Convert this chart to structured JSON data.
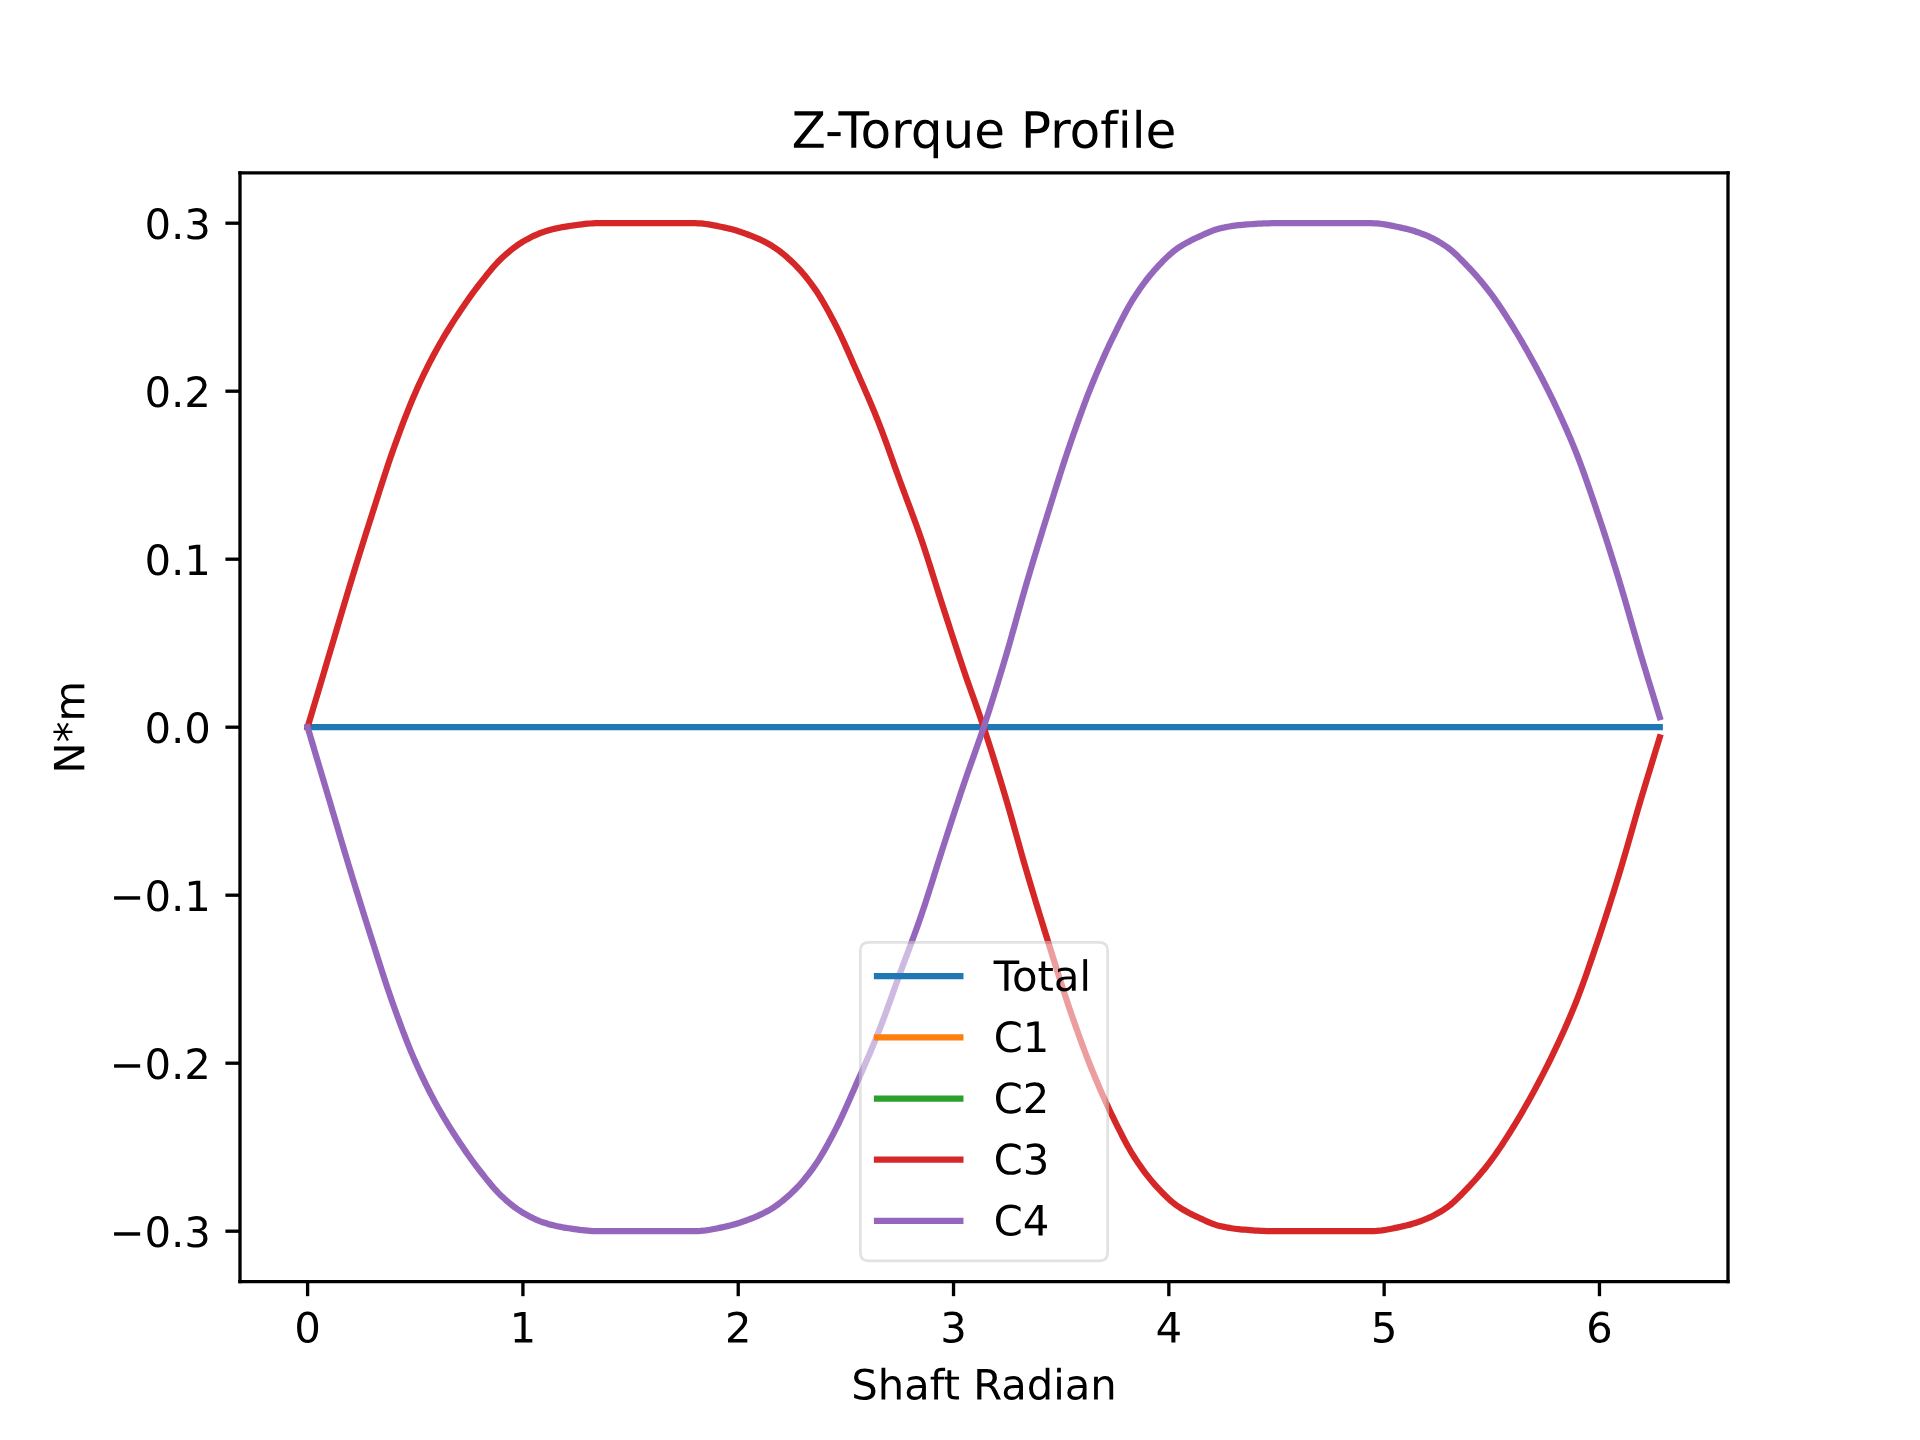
{
  "chart_data": {
    "type": "line",
    "title": "Z-Torque Profile",
    "xlabel": "Shaft Radian",
    "ylabel": "N*m",
    "x": [
      0,
      0.1,
      0.2,
      0.3,
      0.4,
      0.5,
      0.6,
      0.7,
      0.8,
      0.9,
      1.0,
      1.1,
      1.2,
      1.35,
      1.5,
      1.65,
      1.8,
      1.95,
      2.05,
      2.15,
      2.25,
      2.35,
      2.45,
      2.55,
      2.65,
      2.75,
      2.85,
      2.95,
      3.05,
      3.14,
      3.24,
      3.34,
      3.44,
      3.54,
      3.64,
      3.74,
      3.84,
      3.94,
      4.04,
      4.14,
      4.24,
      4.34,
      4.49,
      4.64,
      4.79,
      4.94,
      5.09,
      5.19,
      5.29,
      5.39,
      5.49,
      5.59,
      5.69,
      5.79,
      5.89,
      5.99,
      6.09,
      6.19,
      6.28
    ],
    "series": [
      {
        "name": "Total",
        "color": "#1f77b4",
        "values": [
          0,
          0,
          0,
          0,
          0,
          0,
          0,
          0,
          0,
          0,
          0,
          0,
          0,
          0,
          0,
          0,
          0,
          0,
          0,
          0,
          0,
          0,
          0,
          0,
          0,
          0,
          0,
          0,
          0,
          0,
          0,
          0,
          0,
          0,
          0,
          0,
          0,
          0,
          0,
          0,
          0,
          0,
          0,
          0,
          0,
          0,
          0,
          0,
          0,
          0,
          0,
          0,
          0,
          0,
          0,
          0,
          0,
          0,
          0
        ]
      },
      {
        "name": "C1",
        "color": "#ff7f0e",
        "values": [
          null,
          null,
          null,
          null,
          null,
          null,
          null,
          null,
          null,
          null,
          null,
          null,
          null,
          null,
          null,
          null,
          null,
          null,
          null,
          null,
          null,
          null,
          null,
          null,
          null,
          null,
          null,
          null,
          null,
          null,
          null,
          null,
          null,
          null,
          null,
          null,
          null,
          null,
          null,
          null,
          null,
          null,
          null,
          null,
          null,
          null,
          null,
          null,
          null,
          null,
          null,
          null,
          null,
          null,
          null,
          null,
          null,
          null,
          null
        ]
      },
      {
        "name": "C2",
        "color": "#2ca02c",
        "values": [
          null,
          null,
          null,
          null,
          null,
          null,
          null,
          null,
          null,
          null,
          null,
          null,
          null,
          null,
          null,
          null,
          null,
          null,
          null,
          null,
          null,
          null,
          null,
          null,
          null,
          null,
          null,
          null,
          null,
          null,
          null,
          null,
          null,
          null,
          null,
          null,
          null,
          null,
          null,
          null,
          null,
          null,
          null,
          null,
          null,
          null,
          null,
          null,
          null,
          null,
          null,
          null,
          null,
          null,
          null,
          null,
          null,
          null,
          null
        ]
      },
      {
        "name": "C3",
        "color": "#d62728",
        "values": [
          0,
          0.043,
          0.086,
          0.127,
          0.166,
          0.199,
          0.225,
          0.246,
          0.264,
          0.279,
          0.289,
          0.295,
          0.298,
          0.3,
          0.3,
          0.3,
          0.3,
          0.297,
          0.293,
          0.287,
          0.277,
          0.262,
          0.24,
          0.212,
          0.182,
          0.147,
          0.112,
          0.072,
          0.033,
          0,
          -0.041,
          -0.086,
          -0.128,
          -0.168,
          -0.203,
          -0.232,
          -0.256,
          -0.273,
          -0.285,
          -0.292,
          -0.297,
          -0.299,
          -0.3,
          -0.3,
          -0.3,
          -0.3,
          -0.297,
          -0.293,
          -0.286,
          -0.274,
          -0.259,
          -0.24,
          -0.218,
          -0.193,
          -0.164,
          -0.128,
          -0.088,
          -0.044,
          -0.006
        ]
      },
      {
        "name": "C4",
        "color": "#9467bd",
        "values": [
          0,
          -0.043,
          -0.086,
          -0.127,
          -0.166,
          -0.199,
          -0.225,
          -0.246,
          -0.264,
          -0.279,
          -0.289,
          -0.295,
          -0.298,
          -0.3,
          -0.3,
          -0.3,
          -0.3,
          -0.297,
          -0.293,
          -0.287,
          -0.277,
          -0.262,
          -0.24,
          -0.212,
          -0.182,
          -0.147,
          -0.112,
          -0.072,
          -0.033,
          0,
          0.041,
          0.086,
          0.128,
          0.168,
          0.203,
          0.232,
          0.256,
          0.273,
          0.285,
          0.292,
          0.297,
          0.299,
          0.3,
          0.3,
          0.3,
          0.3,
          0.297,
          0.293,
          0.286,
          0.274,
          0.259,
          0.24,
          0.218,
          0.193,
          0.164,
          0.128,
          0.088,
          0.044,
          0.006
        ]
      }
    ],
    "xlim": [
      -0.314,
      6.597
    ],
    "xticks": [
      0,
      1,
      2,
      3,
      4,
      5,
      6
    ],
    "ylim": [
      -0.33,
      0.33
    ],
    "yticks": [
      {
        "value": -0.3,
        "label": "−0.3"
      },
      {
        "value": -0.2,
        "label": "−0.2"
      },
      {
        "value": -0.1,
        "label": "−0.1"
      },
      {
        "value": 0,
        "label": "0.0"
      },
      {
        "value": 0.1,
        "label": "0.1"
      },
      {
        "value": 0.2,
        "label": "0.2"
      },
      {
        "value": 0.3,
        "label": "0.3"
      }
    ],
    "grid": false,
    "legend": "bottom",
    "marker": "none",
    "line_style": "solid"
  }
}
